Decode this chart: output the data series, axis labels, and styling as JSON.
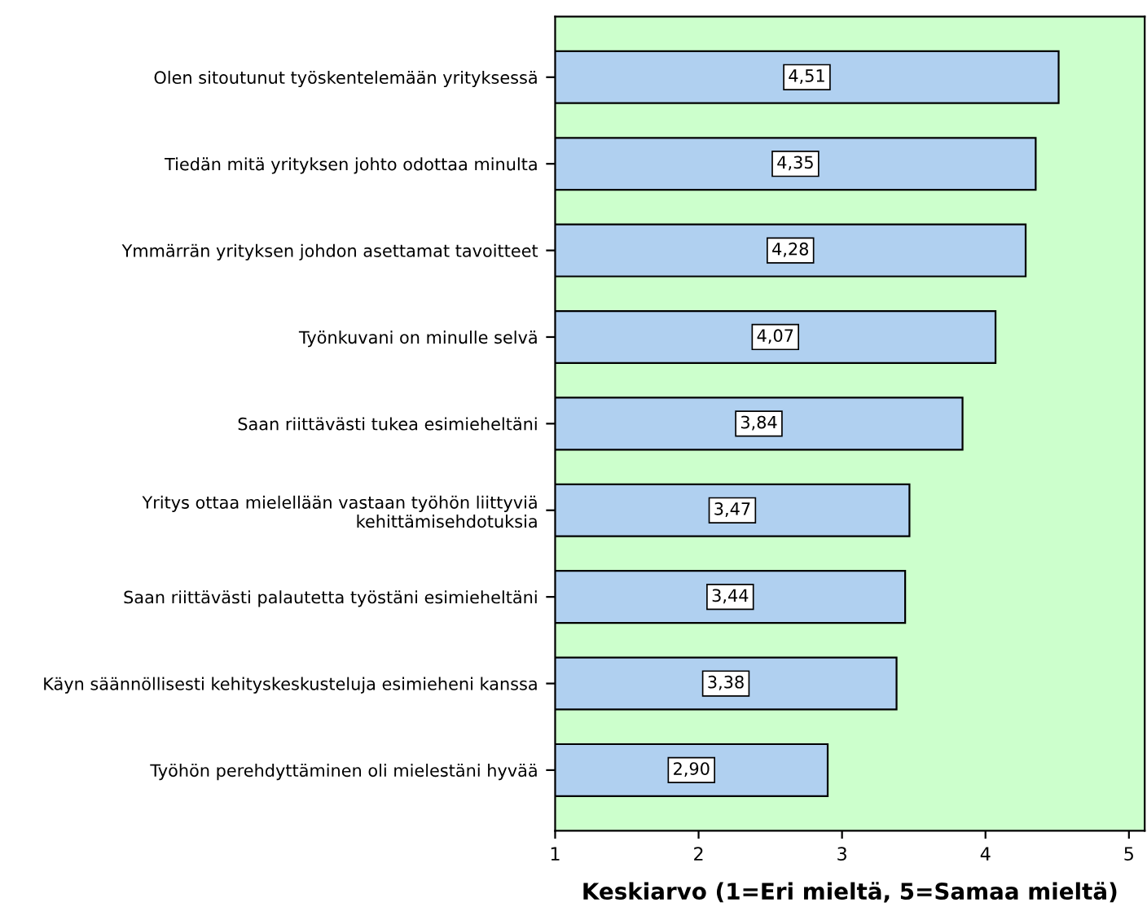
{
  "chart_data": {
    "type": "bar",
    "orientation": "horizontal",
    "xlabel": "Keskiarvo (1=Eri mieltä, 5=Samaa mieltä)",
    "categories": [
      "Olen sitoutunut työskentelemään yrityksessä",
      "Tiedän mitä yrityksen johto odottaa minulta",
      "Ymmärrän yrityksen johdon asettamat tavoitteet",
      "Työnkuvani on minulle selvä",
      "Saan riittävästi tukea esimieheltäni",
      "Yritys ottaa mielellään vastaan työhön liittyviä\nkehittämisehdotuksia",
      "Saan riittävästi palautetta työstäni esimieheltäni",
      "Käyn säännöllisesti kehityskeskusteluja esimieheni kanssa",
      "Työhön perehdyttäminen oli mielestäni hyvää"
    ],
    "values": [
      4.51,
      4.35,
      4.28,
      4.07,
      3.84,
      3.47,
      3.44,
      3.38,
      2.9
    ],
    "value_labels": [
      "4,51",
      "4,35",
      "4,28",
      "4,07",
      "3,84",
      "3,47",
      "3,44",
      "3,38",
      "2,90"
    ],
    "color": "#b0d0f0",
    "xlim": [
      1,
      5.11
    ],
    "xticks": [
      1,
      2,
      3,
      4,
      5
    ],
    "grid": false,
    "legend": false
  }
}
